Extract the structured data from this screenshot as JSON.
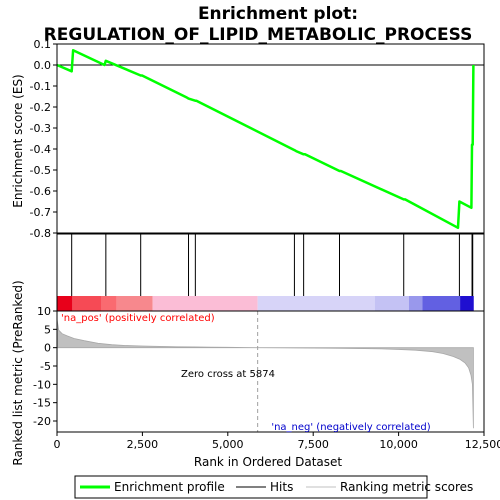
{
  "chart_data": {
    "type": "line",
    "title": "Enrichment plot:\nREGULATION_OF_LIPID_METABOLIC_PROCESS",
    "title_lines": [
      "Enrichment plot:",
      "REGULATION_OF_LIPID_METABOLIC_PROCESS"
    ],
    "xlabel": "Rank in Ordered Dataset",
    "top_panel": {
      "ylabel": "Enrichment score (ES)",
      "ylim": [
        -0.8,
        0.1
      ],
      "yticks": [
        0.1,
        0.0,
        -0.1,
        -0.2,
        -0.3,
        -0.4,
        -0.5,
        -0.6,
        -0.7,
        -0.8
      ],
      "ytick_labels": [
        "0.1",
        "0.0",
        "-0.1",
        "-0.2",
        "-0.3",
        "-0.4",
        "-0.5",
        "-0.6",
        "-0.7",
        "-0.8"
      ],
      "zero_line": true,
      "series": [
        {
          "name": "Enrichment profile",
          "color": "#00ff00",
          "x": [
            0,
            430,
            470,
            1390,
            1430,
            2450,
            2490,
            3800,
            3850,
            4050,
            4080,
            6950,
            7000,
            7220,
            7260,
            8270,
            8310,
            10150,
            10190,
            11740,
            11780,
            12130,
            12150,
            12170,
            12190
          ],
          "y": [
            0.0,
            -0.03,
            0.07,
            0.0,
            0.02,
            -0.05,
            -0.05,
            -0.155,
            -0.16,
            -0.17,
            -0.17,
            -0.405,
            -0.41,
            -0.425,
            -0.425,
            -0.505,
            -0.505,
            -0.64,
            -0.64,
            -0.775,
            -0.65,
            -0.68,
            -0.38,
            -0.38,
            0.0
          ]
        }
      ]
    },
    "hits": {
      "name": "Hits",
      "color": "#000000",
      "x": [
        430,
        1430,
        2450,
        3850,
        4050,
        6950,
        7220,
        8270,
        10150,
        11780,
        12150,
        12170
      ]
    },
    "rank_bar": {
      "segments": [
        {
          "from": 0,
          "to": 450,
          "color": "#e8001a"
        },
        {
          "from": 450,
          "to": 1300,
          "color": "#f64a55"
        },
        {
          "from": 1300,
          "to": 1750,
          "color": "#fa6a70"
        },
        {
          "from": 1750,
          "to": 2800,
          "color": "#f7888d"
        },
        {
          "from": 2800,
          "to": 5874,
          "color": "#fbbdd6"
        },
        {
          "from": 5874,
          "to": 9300,
          "color": "#d7d4f8"
        },
        {
          "from": 9300,
          "to": 10300,
          "color": "#c4c2f4"
        },
        {
          "from": 10300,
          "to": 10700,
          "color": "#9998ec"
        },
        {
          "from": 10700,
          "to": 11800,
          "color": "#6260e2"
        },
        {
          "from": 11800,
          "to": 12200,
          "color": "#1f0fd0"
        }
      ]
    },
    "bottom_panel": {
      "ylabel": "Ranked list metric (PreRanked)",
      "ylim": [
        -23,
        10
      ],
      "yticks": [
        10,
        5,
        0,
        -5,
        -10,
        -15,
        -20
      ],
      "ytick_labels": [
        "10",
        "5",
        "0",
        "-5",
        "-10",
        "-15",
        "-20"
      ],
      "series": [
        {
          "name": "Ranking metric scores",
          "color": "#c0c0c0",
          "x": [
            0,
            50,
            150,
            300,
            500,
            800,
            1200,
            1600,
            2000,
            2500,
            3000,
            3500,
            4000,
            4500,
            5000,
            5500,
            5874,
            6500,
            7000,
            8000,
            9000,
            9500,
            10000,
            10500,
            11000,
            11300,
            11600,
            11800,
            11950,
            12050,
            12120,
            12160,
            12190
          ],
          "y": [
            7.8,
            4.8,
            3.8,
            3.2,
            2.5,
            1.9,
            1.2,
            0.8,
            0.6,
            0.45,
            0.35,
            0.25,
            0.2,
            0.15,
            0.1,
            0.05,
            0.0,
            -0.05,
            -0.1,
            -0.15,
            -0.25,
            -0.35,
            -0.5,
            -0.7,
            -1.1,
            -1.6,
            -2.4,
            -3.2,
            -4.2,
            -5.5,
            -7.5,
            -10,
            -22
          ]
        }
      ],
      "annotations": {
        "positive": "'na_pos' (positively correlated)",
        "negative": "'na_neg' (negatively correlated)",
        "zero_cross": "Zero cross at 5874",
        "zero_cross_x": 5874
      }
    },
    "xlim": [
      0,
      12500
    ],
    "xticks": [
      0,
      2500,
      5000,
      7500,
      10000,
      12500
    ],
    "xtick_labels": [
      "0",
      "2,500",
      "5,000",
      "7,500",
      "10,000",
      "12,500"
    ],
    "legend": {
      "placement": "bottom",
      "entries": [
        {
          "label": "Enrichment profile",
          "color": "#00ff00",
          "kind": "line"
        },
        {
          "label": "Hits",
          "color": "#000000",
          "kind": "line"
        },
        {
          "label": "Ranking metric scores",
          "color": "#c0c0c0",
          "kind": "line"
        }
      ]
    },
    "colors": {
      "positive_label": "#ff0000",
      "negative_label": "#0000cc"
    }
  }
}
